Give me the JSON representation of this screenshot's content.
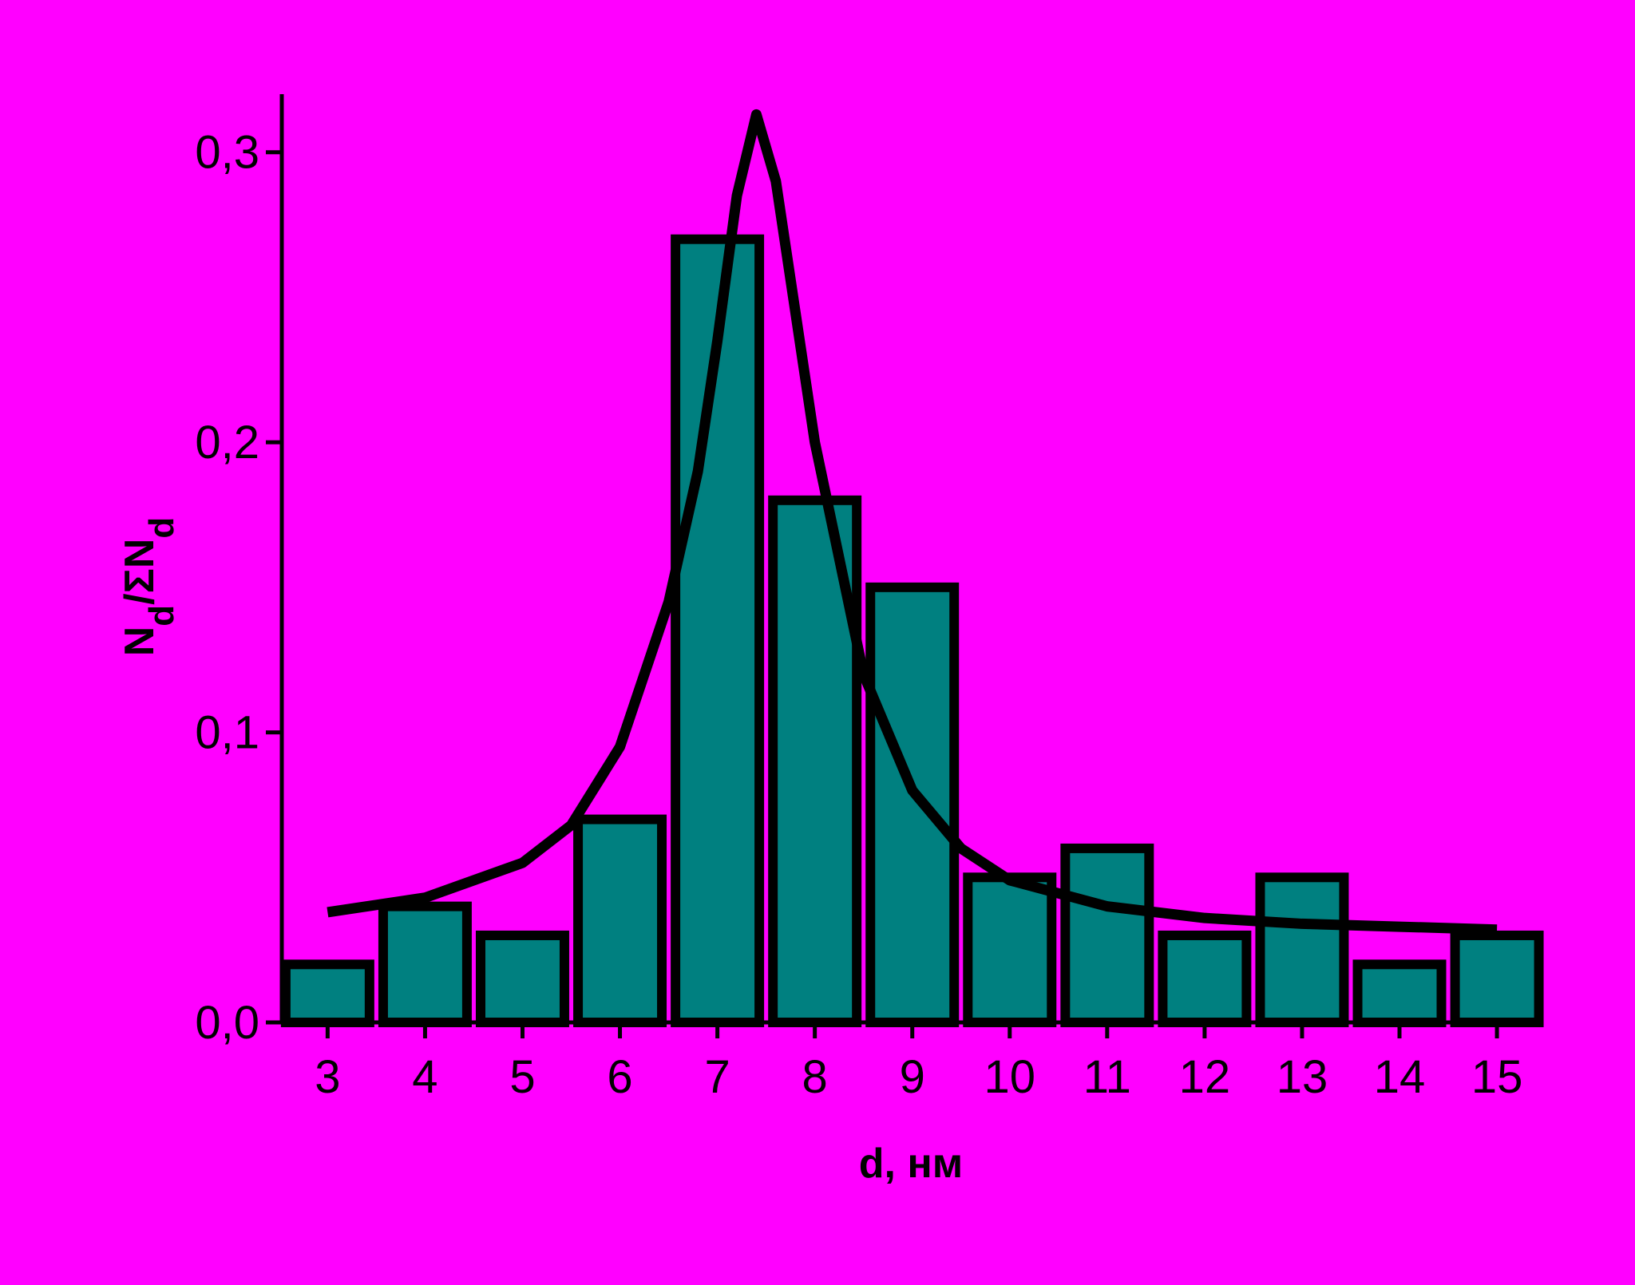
{
  "chart_data": {
    "type": "bar",
    "x": [
      3,
      4,
      5,
      6,
      7,
      8,
      9,
      10,
      11,
      12,
      13,
      14,
      15
    ],
    "values": [
      0.02,
      0.04,
      0.03,
      0.07,
      0.27,
      0.18,
      0.15,
      0.05,
      0.06,
      0.03,
      0.05,
      0.02,
      0.03
    ],
    "color": "#008080",
    "fit": {
      "x": [
        3,
        4,
        5,
        5.5,
        6,
        6.5,
        6.8,
        7,
        7.2,
        7.4,
        7.6,
        7.8,
        8,
        8.5,
        9,
        9.5,
        10,
        11,
        12,
        13,
        14,
        15
      ],
      "values": [
        0.038,
        0.043,
        0.055,
        0.068,
        0.095,
        0.145,
        0.19,
        0.235,
        0.285,
        0.313,
        0.29,
        0.245,
        0.2,
        0.12,
        0.08,
        0.06,
        0.049,
        0.04,
        0.036,
        0.034,
        0.033,
        0.032
      ],
      "color": "#000000"
    },
    "xlabel": "d, нм",
    "ylabel": [
      "N",
      "d",
      "/ΣN",
      "d"
    ],
    "xlim": [
      2.53,
      15.45
    ],
    "ylim": [
      0,
      0.32
    ],
    "xticks": [
      3,
      4,
      5,
      6,
      7,
      8,
      9,
      10,
      11,
      12,
      13,
      14,
      15
    ],
    "yticks": [
      {
        "value": 0,
        "label": "0,0"
      },
      {
        "value": 0.1,
        "label": "0,1"
      },
      {
        "value": 0.2,
        "label": "0,2"
      },
      {
        "value": 0.3,
        "label": "0,3"
      }
    ],
    "background": "#ff00ff"
  }
}
